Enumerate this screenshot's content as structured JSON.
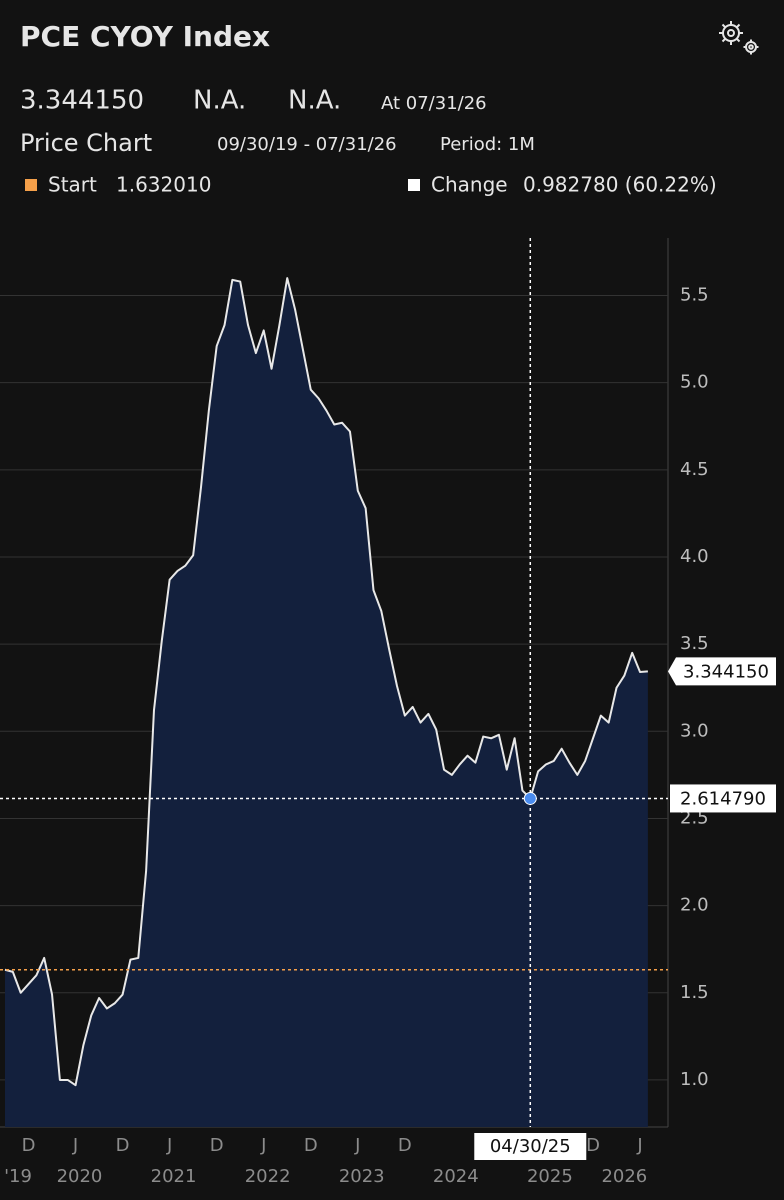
{
  "header": {
    "title": "PCE CYOY Index",
    "last_price": "3.344150",
    "change": "N.A.",
    "change_percent": "N.A.",
    "as_of": "At 07/31/26",
    "tab": "Price Chart",
    "date_range": "09/30/19 - 07/31/26",
    "period": "Period: 1M"
  },
  "legend": {
    "start_label": "Start",
    "start_value": "1.632010",
    "change_label": "Change",
    "change_value": "0.982780 (60.22%)"
  },
  "chart_data": {
    "type": "area",
    "x": [
      "2019-09",
      "2019-10",
      "2019-11",
      "2019-12",
      "2020-01",
      "2020-02",
      "2020-03",
      "2020-04",
      "2020-05",
      "2020-06",
      "2020-07",
      "2020-08",
      "2020-09",
      "2020-10",
      "2020-11",
      "2020-12",
      "2021-01",
      "2021-02",
      "2021-03",
      "2021-04",
      "2021-05",
      "2021-06",
      "2021-07",
      "2021-08",
      "2021-09",
      "2021-10",
      "2021-11",
      "2021-12",
      "2022-01",
      "2022-02",
      "2022-03",
      "2022-04",
      "2022-05",
      "2022-06",
      "2022-07",
      "2022-08",
      "2022-09",
      "2022-10",
      "2022-11",
      "2022-12",
      "2023-01",
      "2023-02",
      "2023-03",
      "2023-04",
      "2023-05",
      "2023-06",
      "2023-07",
      "2023-08",
      "2023-09",
      "2023-10",
      "2023-11",
      "2023-12",
      "2024-01",
      "2024-02",
      "2024-03",
      "2024-04",
      "2024-05",
      "2024-06",
      "2024-07",
      "2024-08",
      "2024-09",
      "2024-10",
      "2024-11",
      "2024-12",
      "2025-01",
      "2025-02",
      "2025-03",
      "2025-04",
      "2025-05",
      "2025-06",
      "2025-07",
      "2025-08",
      "2025-09",
      "2025-10",
      "2025-11",
      "2025-12",
      "2026-01",
      "2026-02",
      "2026-03",
      "2026-04",
      "2026-05",
      "2026-06",
      "2026-07"
    ],
    "values": [
      1.63201,
      1.62,
      1.5,
      1.55,
      1.6,
      1.7,
      1.49,
      1.0,
      1.0,
      0.97,
      1.2,
      1.37,
      1.47,
      1.41,
      1.44,
      1.49,
      1.69,
      1.7,
      2.2,
      3.12,
      3.52,
      3.87,
      3.92,
      3.95,
      4.01,
      4.4,
      4.84,
      5.21,
      5.33,
      5.59,
      5.58,
      5.33,
      5.17,
      5.3,
      5.08,
      5.33,
      5.6,
      5.42,
      5.19,
      4.96,
      4.91,
      4.84,
      4.76,
      4.77,
      4.72,
      4.38,
      4.28,
      3.81,
      3.69,
      3.47,
      3.26,
      3.09,
      3.14,
      3.05,
      3.1,
      3.01,
      2.78,
      2.75,
      2.81,
      2.86,
      2.82,
      2.97,
      2.96,
      2.98,
      2.78,
      2.96,
      2.66,
      2.61479,
      2.77,
      2.81,
      2.83,
      2.9,
      2.82,
      2.75,
      2.83,
      2.96,
      3.09,
      3.05,
      3.25,
      3.32,
      3.45,
      3.34,
      3.34415
    ],
    "color": "#13203d",
    "line_color": "#e8e8e8",
    "ylim": [
      0.73,
      5.83
    ],
    "yticks": [
      {
        "value": 1,
        "label": "1.0"
      },
      1.5,
      {
        "value": 2,
        "label": "2.0"
      },
      2.5,
      {
        "value": 3,
        "label": "3.0"
      },
      3.5,
      {
        "value": 4,
        "label": "4.0"
      },
      4.5,
      {
        "value": 5,
        "label": "5.0"
      },
      5.5
    ],
    "grid": true,
    "xticks": [
      {
        "value": "2019-12",
        "label": "D"
      },
      {
        "value": "2020-06",
        "label": "J"
      },
      {
        "value": "2020-12",
        "label": "D"
      },
      {
        "value": "2021-06",
        "label": "J"
      },
      {
        "value": "2021-12",
        "label": "D"
      },
      {
        "value": "2022-06",
        "label": "J"
      },
      {
        "value": "2022-12",
        "label": "D"
      },
      {
        "value": "2023-06",
        "label": "J"
      },
      {
        "value": "2023-12",
        "label": "D"
      },
      {
        "value": "2025-12",
        "label": "D"
      },
      {
        "value": "2026-06",
        "label": "J"
      }
    ],
    "year_labels": [
      {
        "value": 2019,
        "label": "'19"
      },
      2020,
      2021,
      2022,
      2023,
      2024,
      2025,
      2026
    ],
    "reference_line": {
      "value": 1.63201,
      "color": "#f5a04a"
    },
    "crosshair": {
      "x": "2025-04",
      "value": 2.61479,
      "x_label": "04/30/25",
      "value_label": "2.614790",
      "color": "#4a8cf0"
    },
    "last_label": {
      "value": 3.34415,
      "label": "3.344150"
    }
  }
}
